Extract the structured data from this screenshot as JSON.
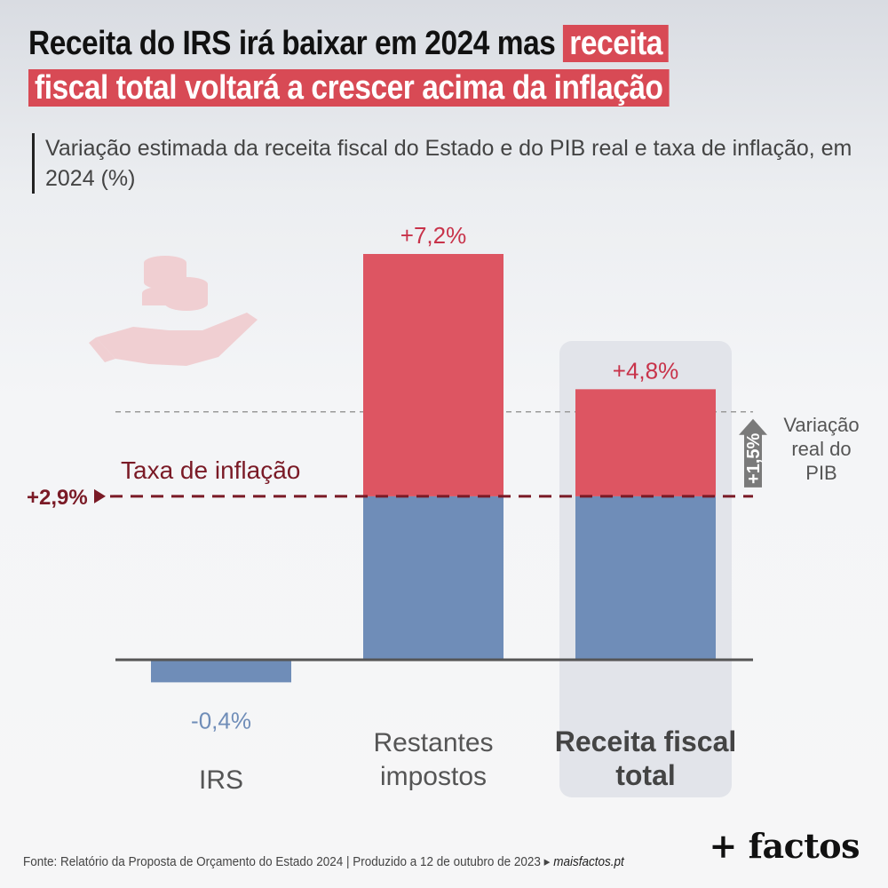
{
  "title": {
    "part1": "Receita do IRS irá baixar em 2024 mas",
    "highlight1": "receita",
    "highlight2": "fiscal total voltará a crescer acima da inflação"
  },
  "subtitle": "Variação estimada da receita fiscal do Estado e do PIB real e taxa de inflação, em 2024 (%)",
  "colors": {
    "above_inflation": "#dd5562",
    "below_inflation": "#6f8db8",
    "inflation_line": "#7a1a26",
    "highlight_box": "#e2e4ea"
  },
  "chart_data": {
    "type": "bar",
    "categories": [
      "IRS",
      "Restantes impostos",
      "Receita fiscal total"
    ],
    "values": [
      -0.4,
      7.2,
      4.8
    ],
    "value_labels": [
      "-0,4%",
      "+7,2%",
      "+4,8%"
    ],
    "highlighted_category": "Receita fiscal total",
    "reference_lines": [
      {
        "name": "Taxa de inflação",
        "value": 2.9,
        "label": "+2,9%"
      },
      {
        "name": "Variação real do PIB",
        "value": 1.5,
        "label": "+1,5%",
        "relative_to": "Taxa de inflação"
      }
    ],
    "ylim": [
      -0.4,
      7.2
    ],
    "grid": false
  },
  "annotations": {
    "inflation_label": "Taxa de inflação",
    "inflation_value": "+2,9%",
    "pib_label_lines": [
      "Variação",
      "real do",
      "PIB"
    ],
    "pib_value": "+1,5%"
  },
  "category_labels": [
    {
      "lines": [
        "IRS"
      ],
      "bold": false
    },
    {
      "lines": [
        "Restantes",
        "impostos"
      ],
      "bold": false
    },
    {
      "lines": [
        "Receita fiscal",
        "total"
      ],
      "bold": true
    }
  ],
  "footer": {
    "source": "Fonte: Relatório da Proposta de Orçamento do Estado 2024 | Produzido a 12 de outubro de 2023 ▸",
    "site": "maisfactos.pt"
  },
  "brand": "+ factos",
  "icons": [
    "coins-in-hand-icon"
  ]
}
